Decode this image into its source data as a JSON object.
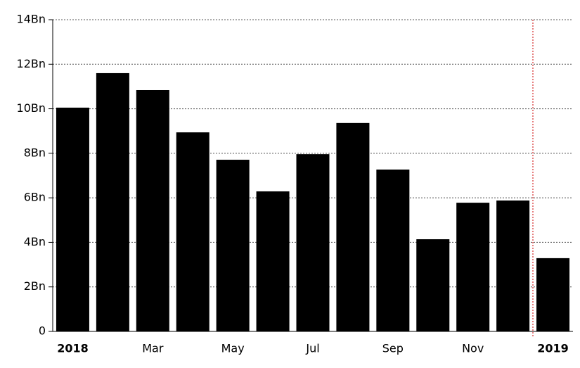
{
  "chart_data": {
    "type": "bar",
    "categories": [
      "2018",
      null,
      "Mar",
      null,
      "May",
      null,
      "Jul",
      null,
      "Sep",
      null,
      "Nov",
      null,
      "2019"
    ],
    "values": [
      10.05,
      11.6,
      10.84,
      8.94,
      7.71,
      6.29,
      7.96,
      9.36,
      7.27,
      4.14,
      5.78,
      5.88,
      3.29
    ],
    "color": "#000000",
    "ylim": [
      0,
      14
    ],
    "yticks": [
      0,
      {
        "value": 2,
        "label": "2Bn"
      },
      {
        "value": 4,
        "label": "4Bn"
      },
      {
        "value": 6,
        "label": "6Bn"
      },
      {
        "value": 8,
        "label": "8Bn"
      },
      {
        "value": 10,
        "label": "10Bn"
      },
      {
        "value": 12,
        "label": "12Bn"
      },
      {
        "value": 14,
        "label": "14Bn"
      }
    ],
    "grid": true
  }
}
